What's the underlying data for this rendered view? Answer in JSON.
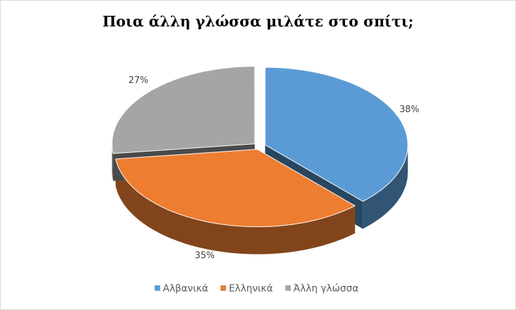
{
  "chart_data": {
    "type": "pie",
    "title": "Ποια άλλη γλώσσα μιλάτε στο σπίτι;",
    "categories": [
      "Αλβανικά",
      "Ελληνικά",
      "Άλλη γλώσσα"
    ],
    "values": [
      38,
      35,
      27
    ],
    "value_labels": [
      "38%",
      "35%",
      "27%"
    ],
    "colors": [
      "#5b9bd5",
      "#ed7d31",
      "#a5a5a5"
    ],
    "legend": "bottom"
  }
}
